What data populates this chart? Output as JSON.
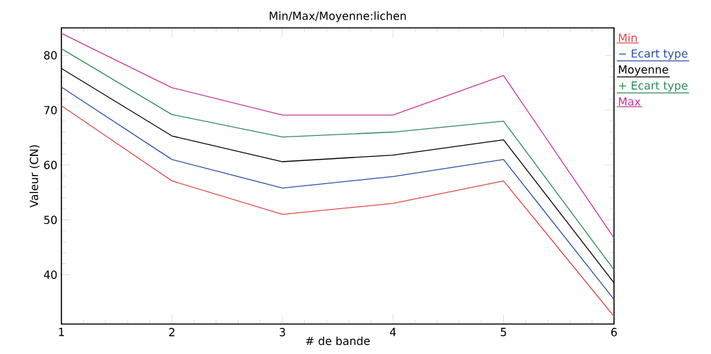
{
  "chart_data": {
    "type": "line",
    "title": "Min/Max/Moyenne:lichen",
    "xlabel": "# de bande",
    "ylabel": "Valeur (CN)",
    "x": [
      1,
      2,
      3,
      4,
      5,
      6
    ],
    "xlim": [
      1,
      6
    ],
    "xticks": [
      1,
      2,
      3,
      4,
      5,
      6
    ],
    "ylim": [
      31,
      85
    ],
    "yticks": [
      40,
      50,
      60,
      70,
      80
    ],
    "legend": "right",
    "grid": false,
    "marker": "none",
    "line_style": "solid",
    "series": [
      {
        "name": "Min",
        "color": "#e04848",
        "values": [
          70.8,
          57.1,
          51.0,
          53.0,
          57.1,
          32.4
        ]
      },
      {
        "name": "− Ecart type",
        "color": "#2a4fa8",
        "values": [
          74.2,
          61.0,
          55.8,
          57.9,
          61.0,
          35.5
        ]
      },
      {
        "name": "Moyenne",
        "color": "#000000",
        "values": [
          77.6,
          65.3,
          60.6,
          61.8,
          64.6,
          38.5
        ]
      },
      {
        "name": "+ Ecart type",
        "color": "#2e8b5a",
        "values": [
          81.2,
          69.2,
          65.1,
          66.0,
          68.0,
          40.9
        ]
      },
      {
        "name": "Max",
        "color": "#cc3399",
        "values": [
          84.0,
          74.1,
          69.1,
          69.1,
          76.3,
          46.7
        ]
      }
    ]
  }
}
